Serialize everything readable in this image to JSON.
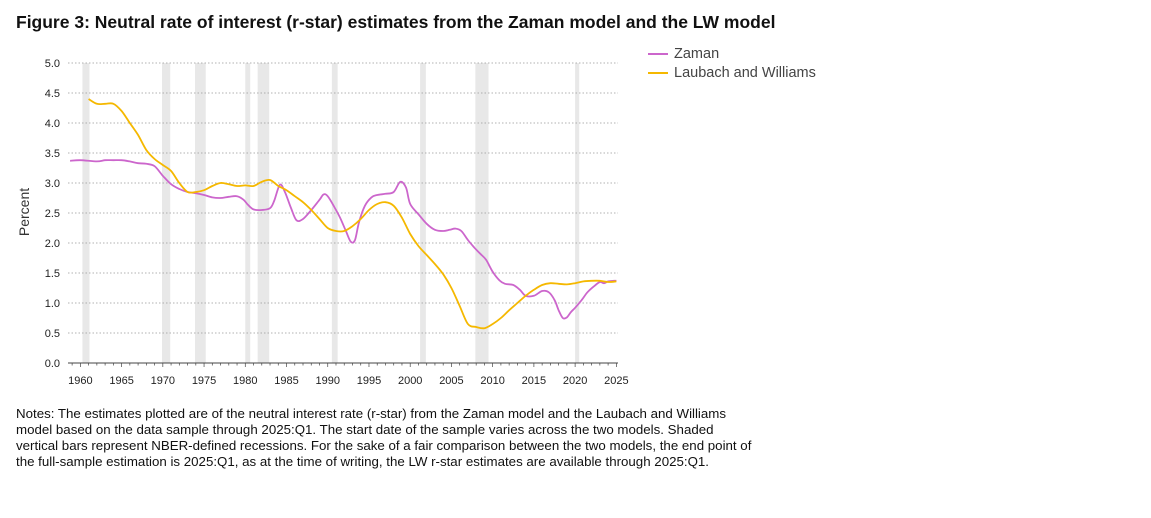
{
  "title": "Figure 3: Neutral rate of interest (r-star) estimates from the Zaman model and the LW model",
  "notes": "Notes: The estimates plotted are of the neutral interest rate (r-star) from the Zaman model and the Laubach and Williams model based on the data sample through 2025:Q1. The start date of the sample varies across the two models. Shaded vertical bars represent NBER-defined recessions. For the sake of a fair comparison between the two models, the end point of the full-sample estimation is 2025:Q1, as at the time of writing, the LW r-star estimates are available through 2025:Q1.",
  "colors": {
    "zaman": "#cc66cc",
    "lw": "#f5b800",
    "recession": "#e8e8e8",
    "grid": "#999999"
  },
  "chart_data": {
    "type": "line",
    "title": "Figure 3: Neutral rate of interest (r-star) estimates from the Zaman model and the LW model",
    "xlabel": "",
    "ylabel": "Percent",
    "xlim": [
      1958.5,
      2025.2
    ],
    "ylim": [
      0,
      5
    ],
    "yticks": [
      0.0,
      0.5,
      1.0,
      1.5,
      2.0,
      2.5,
      3.0,
      3.5,
      4.0,
      4.5,
      5.0
    ],
    "ytick_labels": [
      "0.0",
      "0.5",
      "1.0",
      "1.5",
      "2.0",
      "2.5",
      "3.0",
      "3.5",
      "4.0",
      "4.5",
      "5.0"
    ],
    "xtick_labels": [
      {
        "year": 1960,
        "label": "1960"
      },
      {
        "year": 1965,
        "label": "1965"
      },
      {
        "year": 1970,
        "label": "1970"
      },
      {
        "year": 1975,
        "label": "1975"
      },
      {
        "year": 1980,
        "label": "1980"
      },
      {
        "year": 1985,
        "label": "1985"
      },
      {
        "year": 1990,
        "label": "1990"
      },
      {
        "year": 1995,
        "label": "1995"
      },
      {
        "year": 2000,
        "label": "2000"
      },
      {
        "year": 2005,
        "label": "2005"
      },
      {
        "year": 2010,
        "label": "2010"
      },
      {
        "year": 2015,
        "label": "2015"
      },
      {
        "year": 2020,
        "label": "2020"
      },
      {
        "year": 2025,
        "label": "2025"
      }
    ],
    "grid": true,
    "legend_position": "right",
    "recessions": [
      [
        1960.25,
        1961.1
      ],
      [
        1969.9,
        1970.9
      ],
      [
        1973.9,
        1975.2
      ],
      [
        1980.0,
        1980.6
      ],
      [
        1981.5,
        1982.9
      ],
      [
        1990.5,
        1991.2
      ],
      [
        2001.2,
        2001.9
      ],
      [
        2007.9,
        2009.5
      ],
      [
        2020.0,
        2020.5
      ]
    ],
    "series": [
      {
        "name": "Zaman",
        "key": "zaman",
        "points": [
          [
            1958.75,
            3.37
          ],
          [
            1960,
            3.38
          ],
          [
            1962,
            3.36
          ],
          [
            1963,
            3.38
          ],
          [
            1964,
            3.38
          ],
          [
            1965,
            3.38
          ],
          [
            1966,
            3.36
          ],
          [
            1967,
            3.33
          ],
          [
            1968,
            3.32
          ],
          [
            1969,
            3.28
          ],
          [
            1970,
            3.12
          ],
          [
            1971,
            2.98
          ],
          [
            1972,
            2.9
          ],
          [
            1973,
            2.85
          ],
          [
            1974,
            2.83
          ],
          [
            1975,
            2.8
          ],
          [
            1976,
            2.76
          ],
          [
            1977,
            2.75
          ],
          [
            1978,
            2.77
          ],
          [
            1979,
            2.78
          ],
          [
            1979.8,
            2.72
          ],
          [
            1980.3,
            2.64
          ],
          [
            1981,
            2.56
          ],
          [
            1982,
            2.55
          ],
          [
            1983,
            2.58
          ],
          [
            1983.5,
            2.7
          ],
          [
            1984.2,
            2.97
          ],
          [
            1984.8,
            2.85
          ],
          [
            1985.5,
            2.6
          ],
          [
            1986.2,
            2.38
          ],
          [
            1987,
            2.4
          ],
          [
            1988,
            2.55
          ],
          [
            1989,
            2.72
          ],
          [
            1989.5,
            2.81
          ],
          [
            1990,
            2.78
          ],
          [
            1990.8,
            2.6
          ],
          [
            1991.5,
            2.42
          ],
          [
            1992.2,
            2.2
          ],
          [
            1992.8,
            2.02
          ],
          [
            1993.3,
            2.05
          ],
          [
            1993.8,
            2.35
          ],
          [
            1994.5,
            2.62
          ],
          [
            1995.3,
            2.76
          ],
          [
            1996,
            2.8
          ],
          [
            1997,
            2.82
          ],
          [
            1998,
            2.85
          ],
          [
            1998.8,
            3.02
          ],
          [
            1999.5,
            2.92
          ],
          [
            2000,
            2.65
          ],
          [
            2001,
            2.48
          ],
          [
            2002,
            2.32
          ],
          [
            2003,
            2.22
          ],
          [
            2004,
            2.2
          ],
          [
            2004.8,
            2.22
          ],
          [
            2005.5,
            2.24
          ],
          [
            2006.2,
            2.2
          ],
          [
            2007,
            2.05
          ],
          [
            2007.8,
            1.92
          ],
          [
            2008.5,
            1.82
          ],
          [
            2009.2,
            1.72
          ],
          [
            2010,
            1.52
          ],
          [
            2010.8,
            1.38
          ],
          [
            2011.5,
            1.32
          ],
          [
            2012.5,
            1.3
          ],
          [
            2013.3,
            1.22
          ],
          [
            2014,
            1.12
          ],
          [
            2015,
            1.12
          ],
          [
            2016,
            1.2
          ],
          [
            2016.8,
            1.18
          ],
          [
            2017.5,
            1.05
          ],
          [
            2018,
            0.88
          ],
          [
            2018.5,
            0.75
          ],
          [
            2019,
            0.76
          ],
          [
            2019.5,
            0.85
          ],
          [
            2020,
            0.92
          ],
          [
            2020.8,
            1.05
          ],
          [
            2021.5,
            1.18
          ],
          [
            2022.3,
            1.28
          ],
          [
            2023,
            1.35
          ],
          [
            2023.5,
            1.33
          ],
          [
            2024,
            1.36
          ],
          [
            2024.7,
            1.37
          ],
          [
            2025,
            1.37
          ]
        ]
      },
      {
        "name": "Laubach and Williams",
        "key": "lw",
        "points": [
          [
            1961,
            4.4
          ],
          [
            1962,
            4.32
          ],
          [
            1963,
            4.32
          ],
          [
            1964,
            4.32
          ],
          [
            1965,
            4.2
          ],
          [
            1966,
            4.0
          ],
          [
            1967,
            3.8
          ],
          [
            1968,
            3.55
          ],
          [
            1969,
            3.4
          ],
          [
            1970,
            3.3
          ],
          [
            1971,
            3.2
          ],
          [
            1972,
            3.0
          ],
          [
            1973,
            2.85
          ],
          [
            1974,
            2.85
          ],
          [
            1975,
            2.88
          ],
          [
            1976,
            2.95
          ],
          [
            1977,
            3.0
          ],
          [
            1978,
            2.98
          ],
          [
            1979,
            2.95
          ],
          [
            1980,
            2.96
          ],
          [
            1981,
            2.95
          ],
          [
            1982,
            3.02
          ],
          [
            1983,
            3.05
          ],
          [
            1984,
            2.95
          ],
          [
            1985,
            2.88
          ],
          [
            1986,
            2.78
          ],
          [
            1987,
            2.68
          ],
          [
            1988,
            2.55
          ],
          [
            1989,
            2.4
          ],
          [
            1990,
            2.25
          ],
          [
            1991,
            2.2
          ],
          [
            1992,
            2.2
          ],
          [
            1993,
            2.28
          ],
          [
            1994,
            2.4
          ],
          [
            1995,
            2.55
          ],
          [
            1996,
            2.65
          ],
          [
            1997,
            2.68
          ],
          [
            1998,
            2.62
          ],
          [
            1999,
            2.42
          ],
          [
            2000,
            2.15
          ],
          [
            2001,
            1.95
          ],
          [
            2002,
            1.8
          ],
          [
            2003,
            1.65
          ],
          [
            2004,
            1.48
          ],
          [
            2005,
            1.25
          ],
          [
            2006,
            0.95
          ],
          [
            2007,
            0.65
          ],
          [
            2008,
            0.6
          ],
          [
            2009,
            0.58
          ],
          [
            2010,
            0.65
          ],
          [
            2011,
            0.75
          ],
          [
            2012,
            0.88
          ],
          [
            2013,
            1.0
          ],
          [
            2014,
            1.12
          ],
          [
            2015,
            1.22
          ],
          [
            2016,
            1.3
          ],
          [
            2017,
            1.33
          ],
          [
            2018,
            1.32
          ],
          [
            2019,
            1.31
          ],
          [
            2020,
            1.33
          ],
          [
            2021,
            1.36
          ],
          [
            2022,
            1.37
          ],
          [
            2023,
            1.37
          ],
          [
            2024,
            1.35
          ],
          [
            2025,
            1.36
          ]
        ]
      }
    ]
  }
}
